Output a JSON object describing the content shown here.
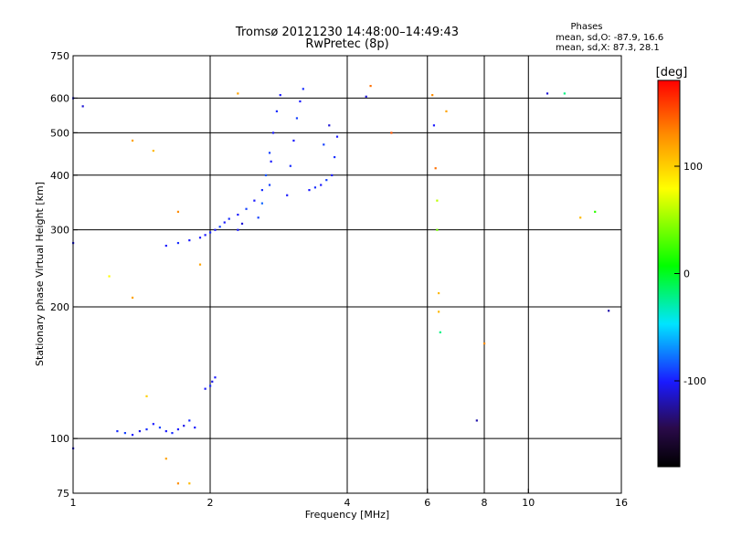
{
  "chart_data": {
    "type": "scatter",
    "title": "Tromsø 20121230 14:48:00–14:49:43",
    "subtitle": "RwPretec (8p)",
    "xlabel": "Frequency [MHz]",
    "ylabel": "Stationary phase Virtual Height [km]",
    "x_scale": "log",
    "y_scale": "log",
    "xlim": [
      1,
      16
    ],
    "ylim": [
      75,
      750
    ],
    "x_ticks": [
      1,
      2,
      4,
      6,
      8,
      10,
      16
    ],
    "x_tick_labels": [
      "1",
      "2",
      "4",
      "6",
      "8",
      "10",
      "16"
    ],
    "y_ticks": [
      75,
      100,
      200,
      300,
      400,
      500,
      600,
      750
    ],
    "y_tick_labels": [
      "75",
      "100",
      "200",
      "300",
      "400",
      "500",
      "600",
      "750"
    ],
    "grid": true,
    "phase_box": {
      "title": "Phases",
      "line_o": "mean, sd,O: -87.9, 16.6",
      "line_x": "mean, sd,X:  87.3, 28.1"
    },
    "colorbar": {
      "label": "[deg]",
      "range": [
        -180,
        180
      ],
      "ticks": [
        100,
        0,
        -100
      ],
      "tick_labels": [
        "100",
        "0",
        "-100"
      ]
    },
    "series": [
      {
        "points": [
          [
            1.9,
            288,
            -100
          ],
          [
            1.95,
            292,
            -100
          ],
          [
            2.0,
            296,
            -95
          ],
          [
            2.05,
            300,
            -100
          ],
          [
            2.1,
            305,
            -90
          ],
          [
            2.15,
            312,
            -100
          ],
          [
            2.2,
            318,
            -95
          ],
          [
            2.3,
            325,
            -100
          ],
          [
            2.4,
            335,
            -90
          ],
          [
            2.5,
            350,
            -100
          ],
          [
            2.6,
            370,
            -95
          ],
          [
            2.65,
            400,
            -85
          ],
          [
            2.7,
            450,
            -90
          ],
          [
            2.75,
            500,
            -100
          ],
          [
            2.8,
            560,
            -95
          ],
          [
            2.85,
            610,
            -100
          ],
          [
            1.6,
            276,
            -100
          ],
          [
            1.7,
            280,
            -95
          ],
          [
            1.8,
            284,
            -100
          ],
          [
            2.3,
            300,
            -100
          ],
          [
            2.35,
            310,
            -110
          ],
          [
            2.55,
            320,
            -90
          ],
          [
            2.6,
            345,
            -80
          ],
          [
            2.7,
            380,
            -90
          ],
          [
            2.72,
            430,
            -100
          ]
        ]
      },
      {
        "points": [
          [
            2.95,
            360,
            -100
          ],
          [
            3.0,
            420,
            -95
          ],
          [
            3.05,
            480,
            -100
          ],
          [
            3.1,
            540,
            -90
          ],
          [
            3.15,
            590,
            -100
          ],
          [
            3.2,
            630,
            -95
          ],
          [
            3.3,
            370,
            -100
          ],
          [
            3.4,
            375,
            -95
          ],
          [
            3.5,
            380,
            -100
          ],
          [
            3.6,
            390,
            -90
          ],
          [
            3.7,
            400,
            -100
          ],
          [
            3.75,
            440,
            -95
          ],
          [
            3.8,
            490,
            -100
          ],
          [
            3.65,
            520,
            -110
          ],
          [
            3.55,
            470,
            -90
          ]
        ]
      },
      {
        "points": [
          [
            1.25,
            104,
            -95
          ],
          [
            1.3,
            103,
            -90
          ],
          [
            1.35,
            102,
            -100
          ],
          [
            1.4,
            104,
            -105
          ],
          [
            1.45,
            105,
            -95
          ],
          [
            1.5,
            108,
            -100
          ],
          [
            1.55,
            106,
            -90
          ],
          [
            1.6,
            104,
            -100
          ],
          [
            1.65,
            103,
            -95
          ],
          [
            1.7,
            105,
            -100
          ],
          [
            1.75,
            107,
            -105
          ],
          [
            1.8,
            110,
            -95
          ],
          [
            1.85,
            106,
            -100
          ],
          [
            1.95,
            130,
            -100
          ],
          [
            2.0,
            132,
            -95
          ],
          [
            2.02,
            135,
            -105
          ],
          [
            2.05,
            138,
            -100
          ]
        ]
      },
      {
        "points": [
          [
            1.0,
            600,
            -100
          ],
          [
            1.05,
            575,
            -110
          ],
          [
            1.35,
            480,
            120
          ],
          [
            1.5,
            455,
            110
          ],
          [
            1.7,
            330,
            130
          ],
          [
            1.9,
            250,
            120
          ],
          [
            2.3,
            615,
            120
          ],
          [
            4.5,
            640,
            140
          ],
          [
            4.4,
            605,
            -110
          ],
          [
            5.0,
            500,
            150
          ],
          [
            6.15,
            610,
            130
          ],
          [
            6.2,
            520,
            -100
          ],
          [
            6.25,
            415,
            140
          ],
          [
            6.3,
            300,
            40
          ],
          [
            6.3,
            350,
            60
          ],
          [
            6.35,
            215,
            110
          ],
          [
            6.35,
            195,
            110
          ],
          [
            6.4,
            175,
            -20
          ],
          [
            6.6,
            560,
            120
          ],
          [
            8.0,
            165,
            130
          ],
          [
            7.7,
            110,
            -120
          ],
          [
            11.0,
            615,
            -110
          ],
          [
            12.0,
            615,
            -20
          ],
          [
            13.0,
            320,
            110
          ],
          [
            14.0,
            330,
            20
          ],
          [
            15.0,
            196,
            -120
          ],
          [
            1.0,
            280,
            -100
          ],
          [
            1.0,
            95,
            -110
          ],
          [
            1.2,
            235,
            80
          ],
          [
            1.35,
            210,
            120
          ],
          [
            1.45,
            125,
            100
          ],
          [
            1.6,
            90,
            120
          ],
          [
            1.7,
            79,
            130
          ],
          [
            1.8,
            79,
            110
          ]
        ]
      }
    ]
  }
}
